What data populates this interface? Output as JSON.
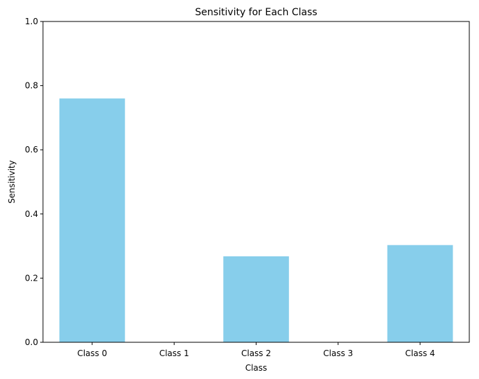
{
  "chart_data": {
    "type": "bar",
    "title": "Sensitivity for Each Class",
    "xlabel": "Class",
    "ylabel": "Sensitivity",
    "categories": [
      "Class 0",
      "Class 1",
      "Class 2",
      "Class 3",
      "Class 4"
    ],
    "values": [
      0.76,
      0.0,
      0.268,
      0.0,
      0.303
    ],
    "ylim": [
      0,
      1.0
    ],
    "yticks": [
      0.0,
      0.2,
      0.4,
      0.6,
      0.8,
      1.0
    ],
    "ytick_labels": [
      "0.0",
      "0.2",
      "0.4",
      "0.6",
      "0.8",
      "1.0"
    ],
    "bar_color": "#87ceeb",
    "grid": false,
    "legend": "none"
  }
}
